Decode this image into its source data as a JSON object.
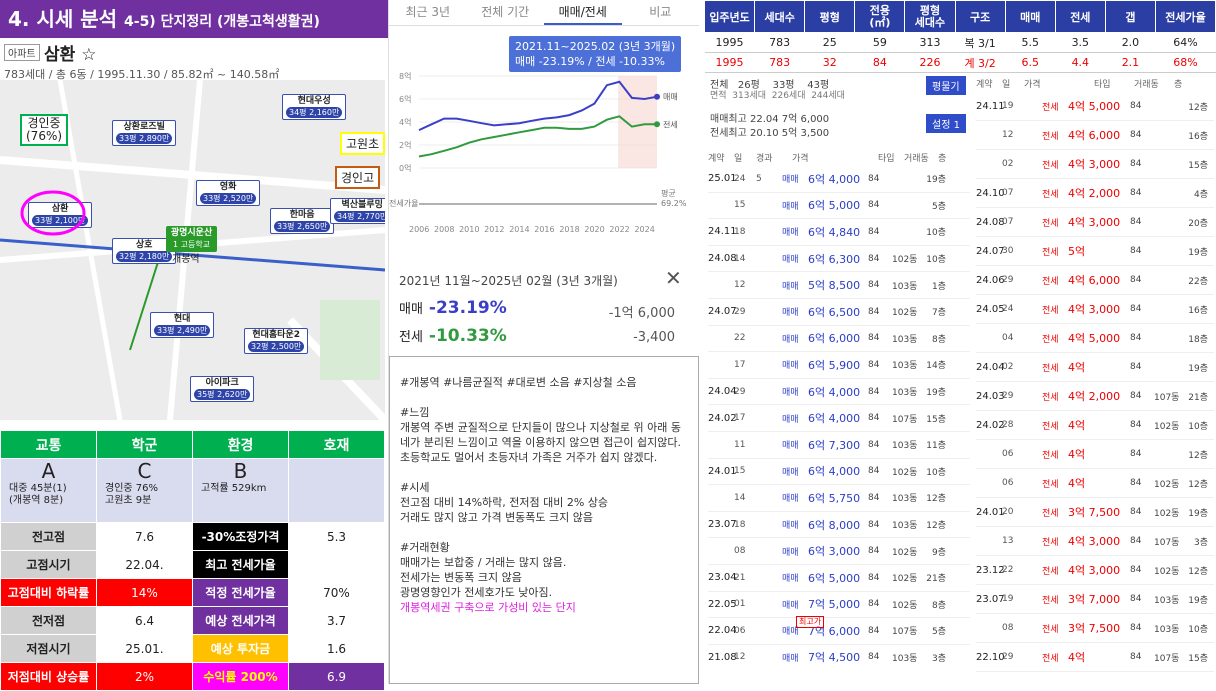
{
  "title": "4. 시세 분석",
  "title_sub": "4-5) 단지정리 (개봉고척생활권)",
  "apt": {
    "tag": "아파트",
    "name": "삼환 ☆",
    "info": "783세대 / 총 6동 / 1995.11.30 / 85.82㎡ ~ 140.58㎡"
  },
  "map": {
    "labels": [
      {
        "name": "경인중\n(76%)",
        "border": "#00b050"
      },
      {
        "name": "고원초",
        "border": "#ffff00"
      },
      {
        "name": "경인고",
        "border": "#c55a11"
      }
    ],
    "pins": [
      {
        "n": "삼환",
        "p": "33평 2,100만"
      },
      {
        "n": "상환로즈빌",
        "p": "33평 2,890만"
      },
      {
        "n": "현대우성",
        "p": "34평 2,160만"
      },
      {
        "n": "영화",
        "p": "33평 2,520만"
      },
      {
        "n": "한마음",
        "p": "33평 2,650만"
      },
      {
        "n": "벽산블루밍",
        "p": "34평 2,770만"
      },
      {
        "n": "상호",
        "p": "32평 2,180만"
      },
      {
        "n": "현대",
        "p": "33평 2,490만"
      },
      {
        "n": "현대홈타운2",
        "p": "32평 2,500만"
      },
      {
        "n": "아이파크",
        "p": "35평 2,620만"
      },
      {
        "n": "광명시운산",
        "p": "1 고등학교"
      }
    ],
    "station": "개봉역"
  },
  "grades": {
    "headers": [
      "교통",
      "학군",
      "환경",
      "호재"
    ],
    "letters": [
      "A",
      "C",
      "B",
      ""
    ],
    "notes": [
      "대중 45분(1)\n(개봉역 8분)",
      "경인중 76%\n고원초 9분",
      "고적률 529km",
      ""
    ]
  },
  "stats": [
    {
      "l": "전고점",
      "v": "7.6",
      "l2": "-30%조정가격",
      "v2": "5.3"
    },
    {
      "l": "고점시기",
      "v": "22.04.",
      "l2": "최고 전세가율",
      "v2": ""
    },
    {
      "l": "고점대비 하락률",
      "v": "14%",
      "l2": "적정 전세가율",
      "v2": "70%"
    },
    {
      "l": "전저점",
      "v": "6.4",
      "l2": "예상 전세가격",
      "v2": "3.7"
    },
    {
      "l": "저점시기",
      "v": "25.01.",
      "l2": "예상 투자금",
      "v2": "1.6"
    },
    {
      "l": "저점대비 상승률",
      "v": "2%",
      "l2": "수익률 200%",
      "v2": "6.9"
    }
  ],
  "tabs": [
    "최근 3년",
    "전체 기간",
    "매매/전세",
    "비교"
  ],
  "chart_data": {
    "type": "line",
    "x": [
      2006,
      2007,
      2008,
      2009,
      2010,
      2011,
      2012,
      2013,
      2014,
      2015,
      2016,
      2017,
      2018,
      2019,
      2020,
      2021,
      2022,
      2023,
      2024,
      2025
    ],
    "series": [
      {
        "name": "매매",
        "values": [
          3.3,
          3.8,
          4.3,
          4.3,
          4.1,
          3.9,
          3.7,
          3.8,
          3.9,
          4.1,
          4.3,
          4.4,
          4.6,
          5.0,
          5.6,
          7.2,
          7.5,
          6.1,
          6.0,
          6.2
        ]
      },
      {
        "name": "전세",
        "values": [
          1.0,
          1.2,
          1.5,
          1.8,
          2.2,
          2.5,
          2.7,
          2.9,
          3.1,
          3.3,
          3.5,
          3.5,
          3.4,
          3.4,
          3.6,
          4.2,
          4.5,
          3.6,
          3.8,
          3.8
        ]
      }
    ],
    "ylim": [
      0,
      8
    ],
    "yticks": [
      "8억",
      "6억",
      "4억",
      "2억",
      "0억"
    ],
    "xticks": [
      "2006",
      "2008",
      "2010",
      "2012",
      "2014",
      "2016",
      "2018",
      "2020",
      "2022",
      "2024"
    ],
    "bottom_label": "전세가율",
    "ratio_label": "평균\n69.2%",
    "tooltip": [
      "2021.11~2025.02 (3년 3개월)",
      "매매 -23.19%  /  전세 -10.33%"
    ]
  },
  "perf": {
    "title": "2021년 11월~2025년 02월 (3년 3개월)",
    "close": "✕",
    "rows": [
      {
        "l": "매매",
        "p": "-23.19%",
        "a": "-1억 6,000",
        "c": "#3b3fc7"
      },
      {
        "l": "전세",
        "p": "-10.33%",
        "a": "-3,400",
        "c": "#2f9a3e"
      }
    ]
  },
  "memo": {
    "body": "#개봉역 #나름균질적 #대로변 소음 #지상철 소음\n\n#느낌\n개봉역 주변 균질적으로 단지들이 많으나 지상철로 위 아래 동네가 분리된 느낌이고 역을 이용하지 않으면 접근이 쉽지않다.\n초등학교도 멀어서 초등자녀 가족은 거주가 쉽지 않겠다.\n\n#시세\n전고점 대비 14%하락, 전저점 대비 2% 상승\n거래도 많지 않고 가격 변동폭도 크지 않음\n\n#거래현황\n매매가는 보합중 / 거래는 많지 않음.\n전세가는 변동폭 크지 않음\n광명영향인가 전세호가도 낮아짐.\n",
    "highlight": "개봉역세권 구축으로 가성비 있는 단지"
  },
  "right_table": {
    "headers": [
      "입주년도",
      "세대수",
      "평형",
      "전용\n(㎡)",
      "평형\n세대수",
      "구조",
      "매매",
      "전세",
      "갭",
      "전세가율"
    ],
    "rows": [
      [
        "1995",
        "783",
        "25",
        "59",
        "313",
        "복 3/1",
        "5.5",
        "3.5",
        "2.0",
        "64%"
      ],
      [
        "1995",
        "783",
        "32",
        "84",
        "226",
        "계 3/2",
        "6.5",
        "4.4",
        "2.1",
        "68%"
      ]
    ]
  },
  "panel": {
    "line1": "전체   26평    33평    43평",
    "line2": "면적  313세대  226세대  244세대",
    "high_sale": "매매최고 22.04 7억 6,000",
    "high_rent": "전세최고 20.10 5억 3,500",
    "btn1": "평물기",
    "btn2": "설정 1",
    "col_headers": [
      "계약",
      "일",
      "경과",
      "가격",
      "타입",
      "거래동",
      "층"
    ]
  },
  "deals_left": [
    {
      "ym": "25.01",
      "d": "24",
      "lap": "5",
      "t": "매매",
      "p": "6억 4,000",
      "a": "84",
      "dong": "",
      "f": "19층"
    },
    {
      "ym": "",
      "d": "15",
      "lap": "",
      "t": "매매",
      "p": "6억 5,000",
      "a": "84",
      "dong": "",
      "f": "5층"
    },
    {
      "ym": "24.11",
      "d": "18",
      "lap": "",
      "t": "매매",
      "p": "6억 4,840",
      "a": "84",
      "dong": "",
      "f": "10층"
    },
    {
      "ym": "24.08",
      "d": "14",
      "lap": "",
      "t": "매매",
      "p": "6억 6,300",
      "a": "84",
      "dong": "102동",
      "f": "10층"
    },
    {
      "ym": "",
      "d": "12",
      "lap": "",
      "t": "매매",
      "p": "5억 8,500",
      "a": "84",
      "dong": "103동",
      "f": "1층"
    },
    {
      "ym": "24.07",
      "d": "29",
      "lap": "",
      "t": "매매",
      "p": "6억 6,500",
      "a": "84",
      "dong": "102동",
      "f": "7층"
    },
    {
      "ym": "",
      "d": "22",
      "lap": "",
      "t": "매매",
      "p": "6억 6,000",
      "a": "84",
      "dong": "103동",
      "f": "8층"
    },
    {
      "ym": "",
      "d": "17",
      "lap": "",
      "t": "매매",
      "p": "6억 5,900",
      "a": "84",
      "dong": "103동",
      "f": "14층"
    },
    {
      "ym": "24.04",
      "d": "29",
      "lap": "",
      "t": "매매",
      "p": "6억 4,000",
      "a": "84",
      "dong": "103동",
      "f": "19층"
    },
    {
      "ym": "24.02",
      "d": "17",
      "lap": "",
      "t": "매매",
      "p": "6억 4,000",
      "a": "84",
      "dong": "107동",
      "f": "15층"
    },
    {
      "ym": "",
      "d": "11",
      "lap": "",
      "t": "매매",
      "p": "6억 7,300",
      "a": "84",
      "dong": "103동",
      "f": "11층"
    },
    {
      "ym": "24.01",
      "d": "15",
      "lap": "",
      "t": "매매",
      "p": "6억 4,000",
      "a": "84",
      "dong": "102동",
      "f": "10층"
    },
    {
      "ym": "",
      "d": "14",
      "lap": "",
      "t": "매매",
      "p": "6억 5,750",
      "a": "84",
      "dong": "103동",
      "f": "12층"
    },
    {
      "ym": "23.07",
      "d": "18",
      "lap": "",
      "t": "매매",
      "p": "6억 8,000",
      "a": "84",
      "dong": "103동",
      "f": "12층"
    },
    {
      "ym": "",
      "d": "08",
      "lap": "",
      "t": "매매",
      "p": "6억 3,000",
      "a": "84",
      "dong": "102동",
      "f": "9층"
    },
    {
      "ym": "23.04",
      "d": "21",
      "lap": "",
      "t": "매매",
      "p": "6억 5,000",
      "a": "84",
      "dong": "102동",
      "f": "21층"
    },
    {
      "ym": "22.05",
      "d": "01",
      "lap": "",
      "t": "매매",
      "p": "7억 5,000",
      "a": "84",
      "dong": "102동",
      "f": "8층"
    },
    {
      "ym": "22.04",
      "d": "06",
      "lap": "",
      "t": "매매",
      "p": "7억 6,000",
      "a": "84",
      "dong": "107동",
      "f": "5층"
    },
    {
      "ym": "21.08",
      "d": "12",
      "lap": "",
      "t": "매매",
      "p": "7억 4,500",
      "a": "84",
      "dong": "103동",
      "f": "3층"
    }
  ],
  "high_badge": "최고가",
  "deals_right": [
    {
      "ym": "24.11",
      "d": "19",
      "t": "전세",
      "p": "4억 5,000",
      "a": "84",
      "dong": "",
      "f": "12층"
    },
    {
      "ym": "",
      "d": "12",
      "t": "전세",
      "p": "4억 6,000",
      "a": "84",
      "dong": "",
      "f": "16층"
    },
    {
      "ym": "",
      "d": "02",
      "t": "전세",
      "p": "4억 3,000",
      "a": "84",
      "dong": "",
      "f": "15층"
    },
    {
      "ym": "24.10",
      "d": "07",
      "t": "전세",
      "p": "4억 2,000",
      "a": "84",
      "dong": "",
      "f": "4층"
    },
    {
      "ym": "24.08",
      "d": "07",
      "t": "전세",
      "p": "4억 3,000",
      "a": "84",
      "dong": "",
      "f": "20층"
    },
    {
      "ym": "24.07",
      "d": "30",
      "t": "전세",
      "p": "5억",
      "a": "84",
      "dong": "",
      "f": "19층"
    },
    {
      "ym": "24.06",
      "d": "29",
      "t": "전세",
      "p": "4억 6,000",
      "a": "84",
      "dong": "",
      "f": "22층"
    },
    {
      "ym": "24.05",
      "d": "24",
      "t": "전세",
      "p": "4억 3,000",
      "a": "84",
      "dong": "",
      "f": "16층"
    },
    {
      "ym": "",
      "d": "04",
      "t": "전세",
      "p": "4억 5,000",
      "a": "84",
      "dong": "",
      "f": "18층"
    },
    {
      "ym": "24.04",
      "d": "02",
      "t": "전세",
      "p": "4억",
      "a": "84",
      "dong": "",
      "f": "19층"
    },
    {
      "ym": "24.03",
      "d": "29",
      "t": "전세",
      "p": "4억 2,000",
      "a": "84",
      "dong": "107동",
      "f": "21층"
    },
    {
      "ym": "24.02",
      "d": "28",
      "t": "전세",
      "p": "4억",
      "a": "84",
      "dong": "102동",
      "f": "10층"
    },
    {
      "ym": "",
      "d": "06",
      "t": "전세",
      "p": "4억",
      "a": "84",
      "dong": "",
      "f": "12층"
    },
    {
      "ym": "",
      "d": "06",
      "t": "전세",
      "p": "4억",
      "a": "84",
      "dong": "102동",
      "f": "12층"
    },
    {
      "ym": "24.01",
      "d": "20",
      "t": "전세",
      "p": "3억 7,500",
      "a": "84",
      "dong": "102동",
      "f": "19층"
    },
    {
      "ym": "",
      "d": "13",
      "t": "전세",
      "p": "4억 3,000",
      "a": "84",
      "dong": "107동",
      "f": "3층"
    },
    {
      "ym": "23.12",
      "d": "22",
      "t": "전세",
      "p": "4억 3,000",
      "a": "84",
      "dong": "102동",
      "f": "12층"
    },
    {
      "ym": "23.07",
      "d": "19",
      "t": "전세",
      "p": "3억 7,000",
      "a": "84",
      "dong": "103동",
      "f": "19층"
    },
    {
      "ym": "",
      "d": "08",
      "t": "전세",
      "p": "3억 7,500",
      "a": "84",
      "dong": "103동",
      "f": "10층"
    },
    {
      "ym": "22.10",
      "d": "29",
      "t": "전세",
      "p": "4억",
      "a": "84",
      "dong": "107동",
      "f": "15층"
    }
  ]
}
